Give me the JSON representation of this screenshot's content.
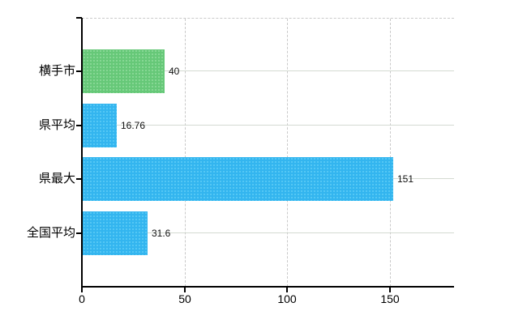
{
  "chart_data": {
    "type": "bar",
    "orientation": "horizontal",
    "title": "",
    "categories": [
      "横手市",
      "県平均",
      "県最大",
      "全国平均"
    ],
    "values": [
      40,
      16.76,
      151,
      31.6
    ],
    "value_labels": [
      "40",
      "16.76",
      "151",
      "31.6"
    ],
    "bar_colors": [
      "#66c878",
      "#33b5ef",
      "#33b5ef",
      "#33b5ef"
    ],
    "bar_dot_colors": [
      "#90dc9e",
      "#5fcdf6",
      "#5fcdf6",
      "#5fcdf6"
    ],
    "x_ticks": [
      0,
      50,
      100,
      150
    ],
    "x_tick_labels": [
      "0",
      "50",
      "100",
      "150"
    ],
    "xlim": [
      0,
      181
    ],
    "grid": true,
    "legend_position": "none"
  },
  "colors": {
    "background": "#ffffff",
    "axis_line": "#000000",
    "horizontal_gridline": "#d4dad2",
    "vertical_gridline": "#c9c9c9",
    "top_border": "#c9c9c9",
    "label_text": "#000000"
  }
}
